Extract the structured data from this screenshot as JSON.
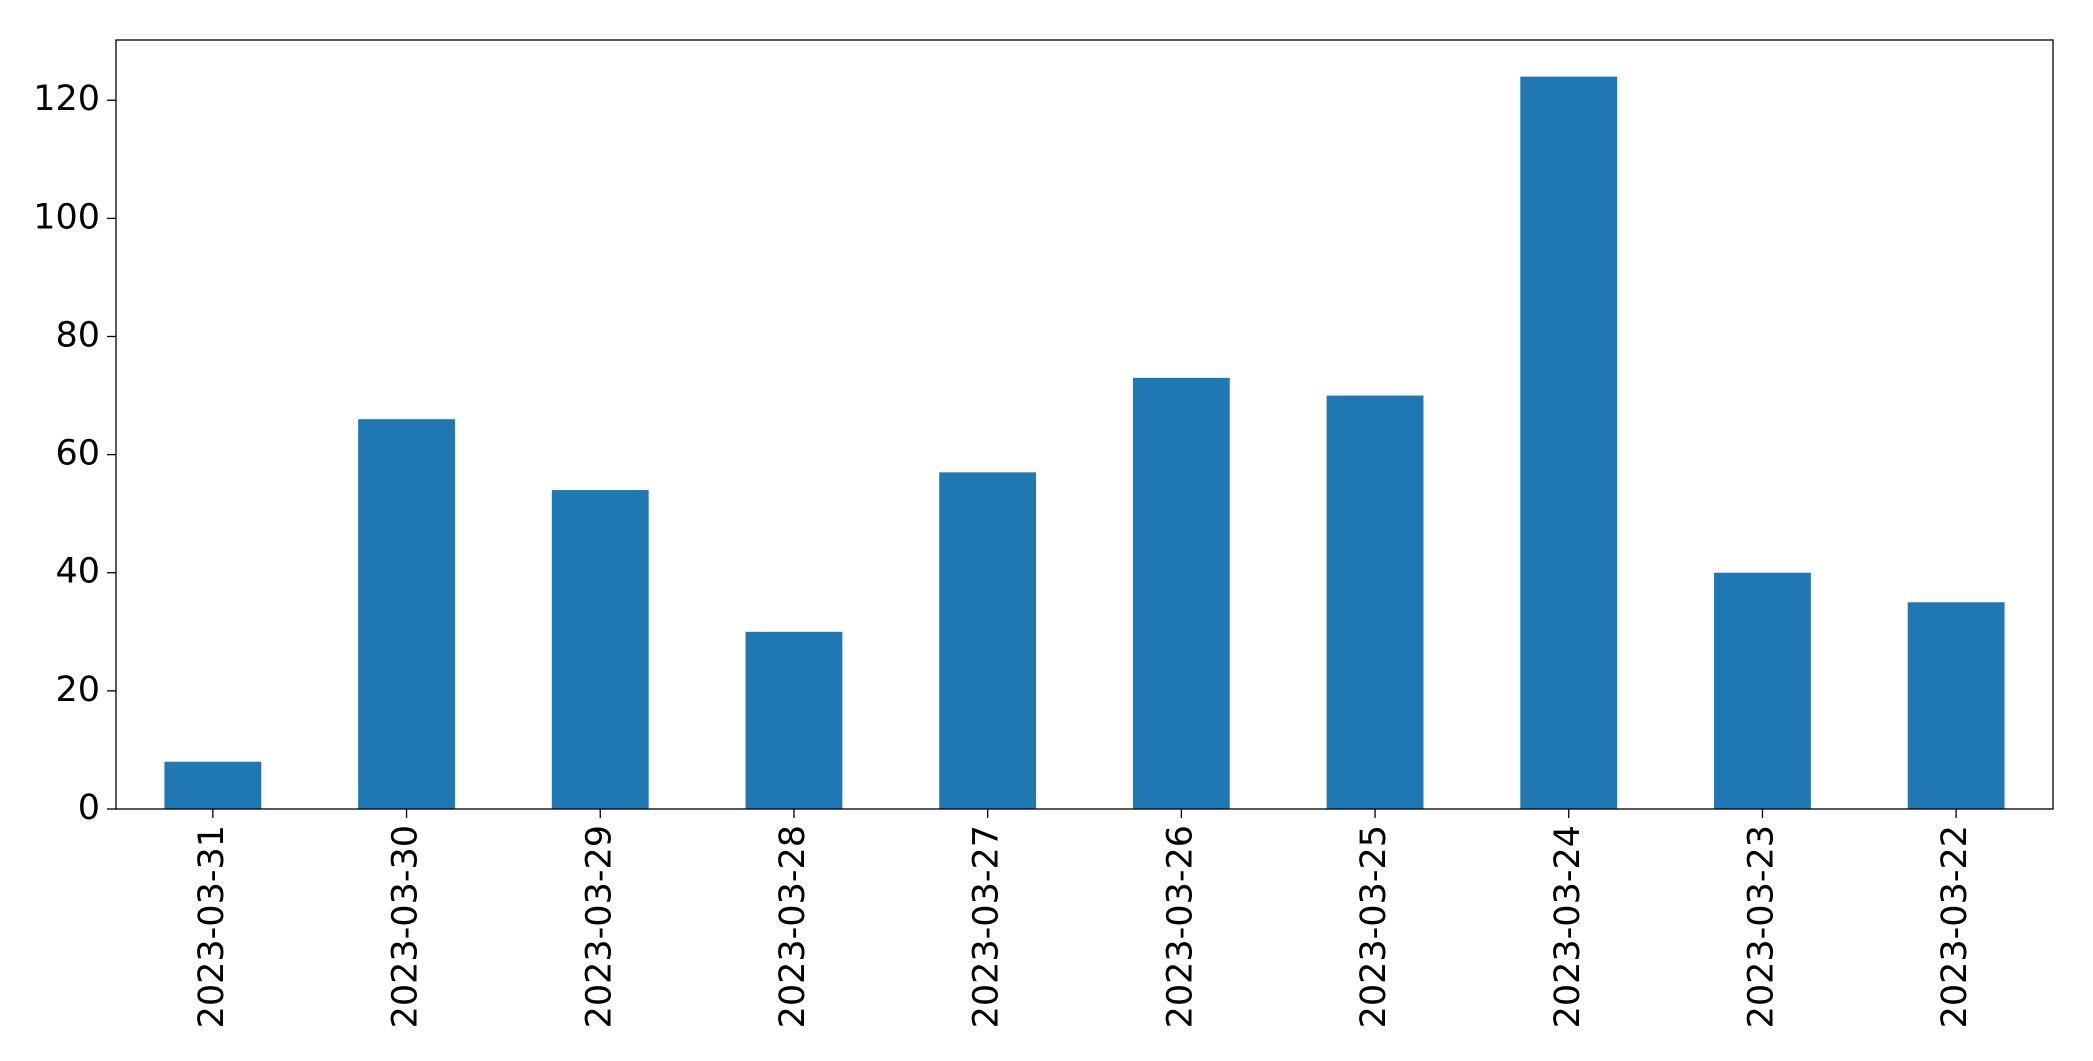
{
  "chart_data": {
    "type": "bar",
    "categories": [
      "2023-03-31",
      "2023-03-30",
      "2023-03-29",
      "2023-03-28",
      "2023-03-27",
      "2023-03-26",
      "2023-03-25",
      "2023-03-24",
      "2023-03-23",
      "2023-03-22"
    ],
    "values": [
      8,
      66,
      54,
      30,
      57,
      73,
      70,
      124,
      40,
      35
    ],
    "color": "#1f77b4",
    "ylim": [
      0,
      130.2
    ],
    "yticks": [
      0,
      20,
      40,
      60,
      80,
      100,
      120
    ],
    "grid": false
  }
}
